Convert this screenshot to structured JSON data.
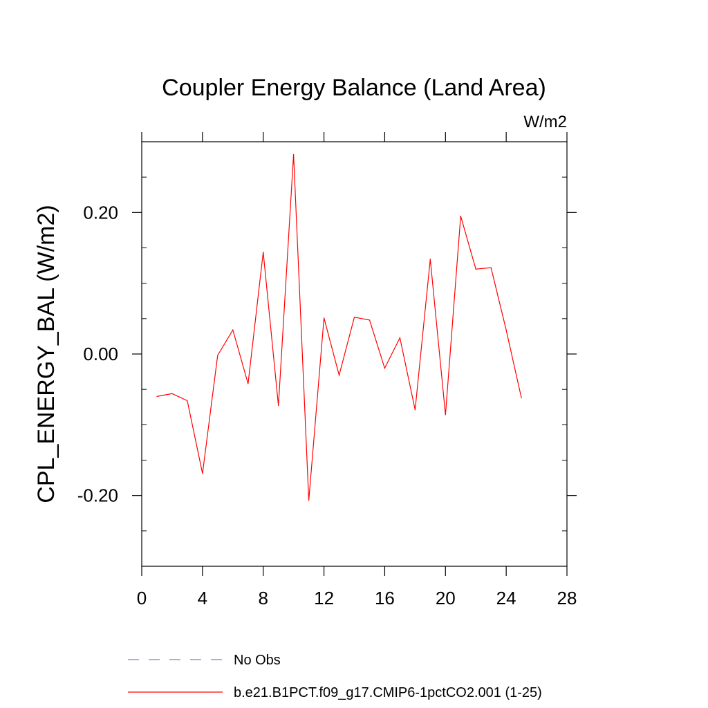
{
  "chart_data": {
    "type": "line",
    "title": "Coupler Energy Balance (Land Area)",
    "units_label": "W/m2",
    "ylabel": "CPL_ENERGY_BAL  (W/m2)",
    "xlabel": "",
    "xlim": [
      0,
      28
    ],
    "ylim": [
      -0.3,
      0.3
    ],
    "x_ticks": [
      0,
      4,
      8,
      12,
      16,
      20,
      24,
      28
    ],
    "x_tick_labels": [
      "0",
      "4",
      "8",
      "12",
      "16",
      "20",
      "24",
      "28"
    ],
    "y_ticks": [
      -0.2,
      0.0,
      0.2
    ],
    "y_tick_labels": [
      "-0.20",
      "0.00",
      "0.20"
    ],
    "grid": false,
    "legend_position": "bottom",
    "series": [
      {
        "name": "No Obs",
        "color": "#7b7bd6",
        "style": "dashed",
        "x": [],
        "y": []
      },
      {
        "name": "b.e21.B1PCT.f09_g17.CMIP6-1pctCO2.001 (1-25)",
        "color": "#ff0000",
        "style": "solid",
        "x": [
          1,
          2,
          3,
          4,
          5,
          6,
          7,
          8,
          9,
          10,
          11,
          12,
          13,
          14,
          15,
          16,
          17,
          18,
          19,
          20,
          21,
          22,
          23,
          24,
          25
        ],
        "y": [
          -0.06,
          -0.056,
          -0.066,
          -0.169,
          -0.002,
          0.034,
          -0.042,
          0.144,
          -0.073,
          0.282,
          -0.207,
          0.051,
          -0.03,
          0.052,
          0.048,
          -0.02,
          0.023,
          -0.079,
          0.134,
          -0.086,
          0.195,
          0.12,
          0.122,
          0.034,
          -0.062
        ]
      }
    ]
  }
}
